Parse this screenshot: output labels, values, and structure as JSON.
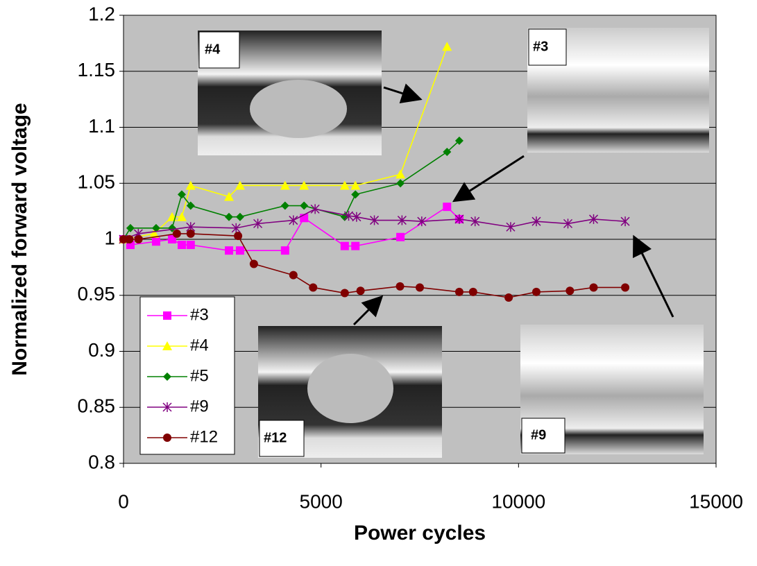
{
  "chart_data": {
    "type": "line",
    "x_label": "Power cycles",
    "y_label": "Normalized forward voltage",
    "xlim": [
      0,
      15000
    ],
    "xticks": [
      0,
      5000,
      10000,
      15000
    ],
    "ylim": [
      0.8,
      1.2
    ],
    "yticks": [
      0.8,
      0.85,
      0.9,
      0.95,
      1,
      1.05,
      1.1,
      1.15,
      1.2
    ],
    "grid": true,
    "legend": "lower left",
    "annotations": [
      "#4",
      "#3",
      "#12",
      "#9"
    ],
    "series": [
      {
        "name": "#3",
        "color": "#ff00ff",
        "marker": "square",
        "x": [
          0,
          175,
          825,
          1230,
          1475,
          1700,
          2670,
          2950,
          4090,
          4570,
          5600,
          5870,
          7010,
          8190,
          8500
        ],
        "values": [
          1.0,
          0.995,
          0.998,
          1.0,
          0.995,
          0.995,
          0.99,
          0.99,
          0.99,
          1.019,
          0.994,
          0.994,
          1.002,
          1.029,
          1.018
        ]
      },
      {
        "name": "#4",
        "color": "#ffff00",
        "marker": "triangle",
        "x": [
          0,
          775,
          1230,
          1475,
          1700,
          2670,
          2950,
          4090,
          4570,
          5600,
          5870,
          7010,
          8190
        ],
        "values": [
          1.0,
          1.005,
          1.02,
          1.02,
          1.048,
          1.038,
          1.048,
          1.048,
          1.048,
          1.048,
          1.048,
          1.058,
          1.172
        ]
      },
      {
        "name": "#5",
        "color": "#008000",
        "marker": "diamond",
        "x": [
          0,
          175,
          825,
          1230,
          1475,
          1700,
          2670,
          2950,
          4090,
          4570,
          5600,
          5870,
          7010,
          8190,
          8500
        ],
        "values": [
          1.0,
          1.01,
          1.01,
          1.01,
          1.04,
          1.03,
          1.02,
          1.02,
          1.03,
          1.03,
          1.02,
          1.04,
          1.05,
          1.078,
          1.088
        ]
      },
      {
        "name": "#9",
        "color": "#800080",
        "marker": "star",
        "x": [
          0,
          375,
          1700,
          2850,
          3400,
          4300,
          4850,
          5700,
          5900,
          6350,
          7050,
          7550,
          8500,
          8900,
          9800,
          10450,
          11250,
          11900,
          12700
        ],
        "values": [
          1.0,
          1.005,
          1.011,
          1.01,
          1.014,
          1.017,
          1.027,
          1.021,
          1.02,
          1.017,
          1.017,
          1.016,
          1.018,
          1.016,
          1.011,
          1.016,
          1.014,
          1.018,
          1.016
        ]
      },
      {
        "name": "#12",
        "color": "#800000",
        "marker": "circle",
        "x": [
          0,
          150,
          380,
          1350,
          1700,
          2900,
          3300,
          4300,
          4800,
          5600,
          6000,
          7000,
          7500,
          8500,
          8850,
          9750,
          10450,
          11300,
          11900,
          12700
        ],
        "values": [
          1.0,
          1.0,
          1.0,
          1.005,
          1.005,
          1.003,
          0.978,
          0.968,
          0.957,
          0.952,
          0.954,
          0.958,
          0.957,
          0.953,
          0.953,
          0.948,
          0.953,
          0.954,
          0.957,
          0.957
        ]
      }
    ]
  }
}
